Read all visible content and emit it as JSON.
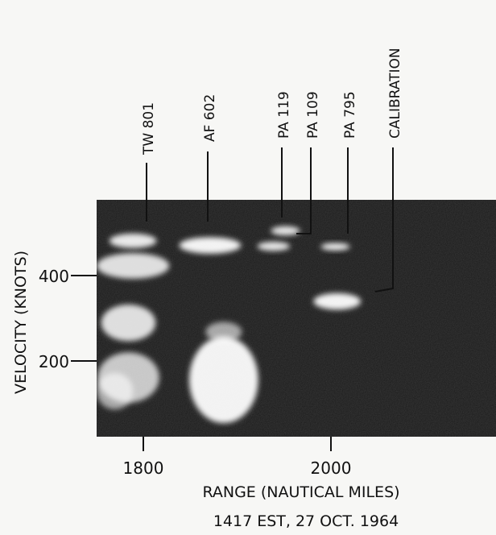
{
  "chart_data": {
    "type": "heatmap",
    "title": "",
    "caption": "1417 EST, 27 OCT. 1964",
    "xlabel": "RANGE (NAUTICAL MILES)",
    "ylabel": "VELOCITY (KNOTS)",
    "xlim": [
      1760,
      2200
    ],
    "ylim": [
      70,
      590
    ],
    "x_ticks": [
      1800,
      2000
    ],
    "y_ticks": [
      200,
      400
    ],
    "background": "#1a1a1a",
    "echo_color": "#ffffff",
    "labeled_targets": [
      {
        "label": "TW 801",
        "range": 1808,
        "velocity": 500
      },
      {
        "label": "AF 602",
        "range": 1882,
        "velocity": 495
      },
      {
        "label": "PA 119",
        "range": 1965,
        "velocity": 525
      },
      {
        "label": "PA 109",
        "range": 1990,
        "velocity": 490
      },
      {
        "label": "PA 795",
        "range": 2015,
        "velocity": 485
      },
      {
        "label": "CALIBRATION",
        "range": 2060,
        "velocity": 375
      }
    ],
    "echoes": [
      {
        "range": 1800,
        "velocity": 500,
        "rw": 26,
        "vw": 16,
        "i": 0.9
      },
      {
        "range": 1885,
        "velocity": 490,
        "rw": 34,
        "vw": 18,
        "i": 0.95
      },
      {
        "range": 1968,
        "velocity": 522,
        "rw": 16,
        "vw": 10,
        "i": 0.9
      },
      {
        "range": 1955,
        "velocity": 488,
        "rw": 18,
        "vw": 10,
        "i": 0.9
      },
      {
        "range": 2023,
        "velocity": 487,
        "rw": 16,
        "vw": 8,
        "i": 0.95
      },
      {
        "range": 2025,
        "velocity": 367,
        "rw": 26,
        "vw": 18,
        "i": 0.95
      },
      {
        "range": 1800,
        "velocity": 445,
        "rw": 40,
        "vw": 28,
        "i": 0.85
      },
      {
        "range": 1795,
        "velocity": 320,
        "rw": 30,
        "vw": 40,
        "i": 0.85
      },
      {
        "range": 1900,
        "velocity": 195,
        "rw": 38,
        "vw": 95,
        "i": 0.95
      },
      {
        "range": 1795,
        "velocity": 200,
        "rw": 34,
        "vw": 55,
        "i": 0.75
      },
      {
        "range": 1780,
        "velocity": 170,
        "rw": 20,
        "vw": 40,
        "i": 0.6
      },
      {
        "range": 1900,
        "velocity": 300,
        "rw": 20,
        "vw": 22,
        "i": 0.6
      }
    ]
  }
}
